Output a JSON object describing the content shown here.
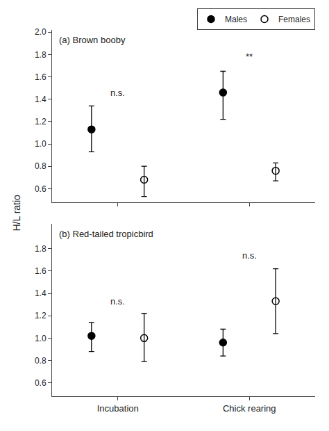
{
  "chart_data": [
    {
      "type": "scatter",
      "title": "(a) Brown booby",
      "ylabel": "H/L ratio",
      "categories": [
        "Incubation",
        "Chick rearing"
      ],
      "series": [
        {
          "name": "Males",
          "color": "#000000",
          "marker": "circle",
          "values": [
            1.13,
            1.46
          ],
          "lo": [
            0.93,
            1.22
          ],
          "hi": [
            1.34,
            1.65
          ]
        },
        {
          "name": "Females",
          "color": "#000000",
          "marker": "circle-open",
          "values": [
            0.68,
            0.76
          ],
          "lo": [
            0.53,
            0.67
          ],
          "hi": [
            0.8,
            0.83
          ]
        }
      ],
      "annotations": [
        {
          "text": "n.s.",
          "x": "Incubation",
          "y": 1.4
        },
        {
          "text": "**",
          "x": "Chick rearing",
          "y": 1.72
        }
      ],
      "ylim": [
        0.48,
        2.02
      ],
      "yticks": [
        0.6,
        0.8,
        {
          "value": 1.0,
          "label": "1.0"
        },
        1.2,
        1.4,
        1.6,
        1.8,
        {
          "value": 2.0,
          "label": "2.0"
        }
      ],
      "grid": false,
      "legend": "upper right",
      "tick_labels": "y"
    },
    {
      "type": "scatter",
      "title": "(b) Red-tailed tropicbird",
      "categories": [
        "Incubation",
        "Chick rearing"
      ],
      "series": [
        {
          "name": "Males",
          "color": "#000000",
          "marker": "circle",
          "values": [
            1.02,
            0.96
          ],
          "lo": [
            0.88,
            0.84
          ],
          "hi": [
            1.14,
            1.08
          ]
        },
        {
          "name": "Females",
          "color": "#000000",
          "marker": "circle-open",
          "values": [
            1.0,
            1.33
          ],
          "lo": [
            0.79,
            1.04
          ],
          "hi": [
            1.22,
            1.62
          ]
        }
      ],
      "annotations": [
        {
          "text": "n.s.",
          "x": "Incubation",
          "y": 1.27
        },
        {
          "text": "n.s.",
          "x": "Chick rearing",
          "y": 1.68
        }
      ],
      "ylim": [
        0.48,
        2.02
      ],
      "yticks": [
        0.6,
        0.8,
        {
          "value": 1.0,
          "label": "1.0"
        },
        1.2,
        1.4,
        1.6,
        1.8
      ],
      "grid": false
    }
  ]
}
